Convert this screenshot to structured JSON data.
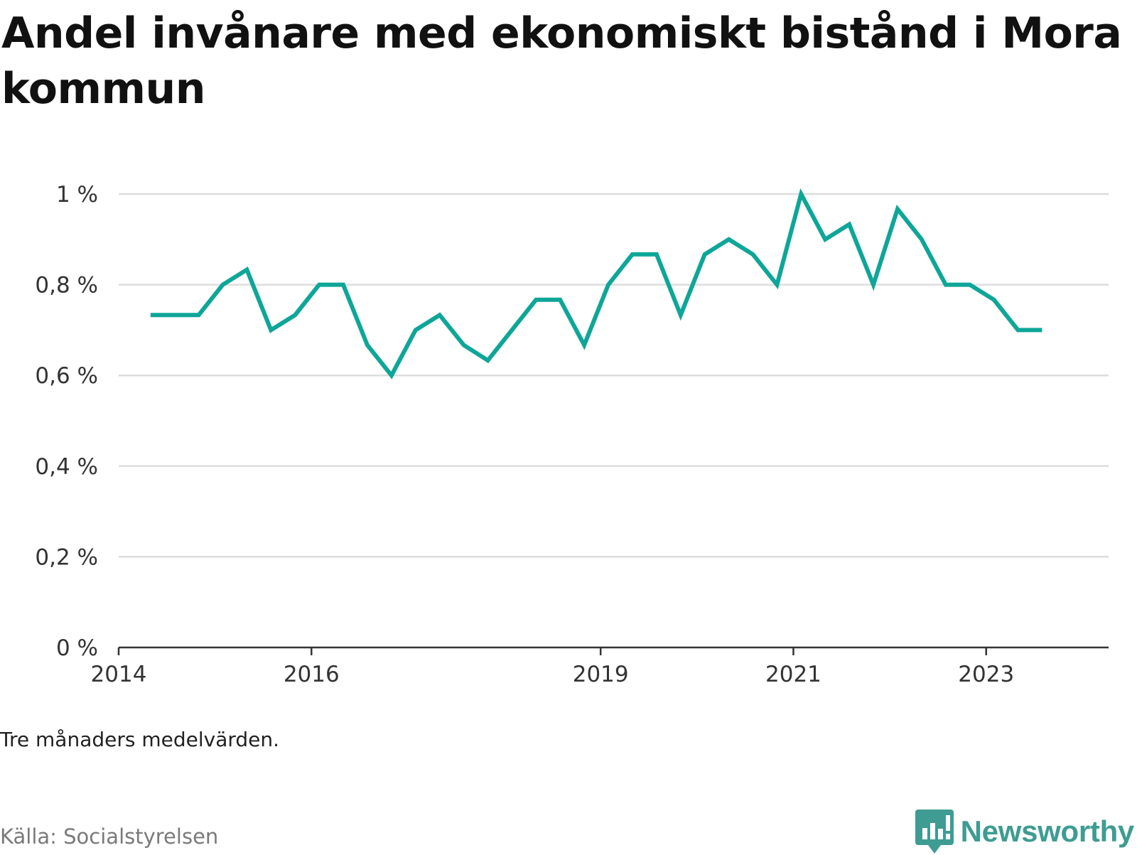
{
  "title": "Andel invånare med ekonomiskt bistånd i Mora kommun",
  "note": "Tre månaders medelvärden.",
  "source": "Källa: Socialstyrelsen",
  "brand": {
    "name": "Newsworthy",
    "icon": "newsworthy-logo-icon",
    "color": "#3e9c92"
  },
  "colors": {
    "line": "#0ea698",
    "grid": "#dddddd",
    "axis": "#333333"
  },
  "chart_data": {
    "type": "line",
    "title": "Andel invånare med ekonomiskt bistånd i Mora kommun",
    "xlabel": "",
    "ylabel": "",
    "ylim": [
      0,
      1
    ],
    "xlim": [
      2014,
      2024.27
    ],
    "grid": true,
    "y_ticks": [
      {
        "value": 0,
        "label": "0 %"
      },
      {
        "value": 0.2,
        "label": "0,2 %"
      },
      {
        "value": 0.4,
        "label": "0,4 %"
      },
      {
        "value": 0.6,
        "label": "0,6 %"
      },
      {
        "value": 0.8,
        "label": "0,8 %"
      },
      {
        "value": 1,
        "label": "1 %"
      }
    ],
    "x_ticks": [
      {
        "value": 2014,
        "label": "2014"
      },
      {
        "value": 2016,
        "label": "2016"
      },
      {
        "value": 2019,
        "label": "2019"
      },
      {
        "value": 2021,
        "label": "2021"
      },
      {
        "value": 2023,
        "label": "2023"
      }
    ],
    "series": [
      {
        "x": [
          2014.33,
          2014.58,
          2014.83,
          2015.08,
          2015.33,
          2015.58,
          2015.83,
          2016.08,
          2016.33,
          2016.58,
          2016.83,
          2017.08,
          2017.33,
          2017.58,
          2017.83,
          2018.08,
          2018.33,
          2018.58,
          2018.83,
          2019.08,
          2019.33,
          2019.58,
          2019.83,
          2020.08,
          2020.33,
          2020.58,
          2020.83,
          2021.08,
          2021.33,
          2021.58,
          2021.83,
          2022.08,
          2022.33,
          2022.58,
          2022.83,
          2023.08,
          2023.33,
          2023.58
        ],
        "values": [
          0.733,
          0.733,
          0.733,
          0.8,
          0.833,
          0.7,
          0.733,
          0.8,
          0.8,
          0.667,
          0.6,
          0.7,
          0.733,
          0.667,
          0.633,
          0.7,
          0.767,
          0.767,
          0.667,
          0.8,
          0.867,
          0.867,
          0.733,
          0.867,
          0.9,
          0.867,
          0.8,
          1.0,
          0.9,
          0.933,
          0.8,
          0.967,
          0.9,
          0.8,
          0.8,
          0.767,
          0.7,
          0.7
        ]
      }
    ]
  }
}
